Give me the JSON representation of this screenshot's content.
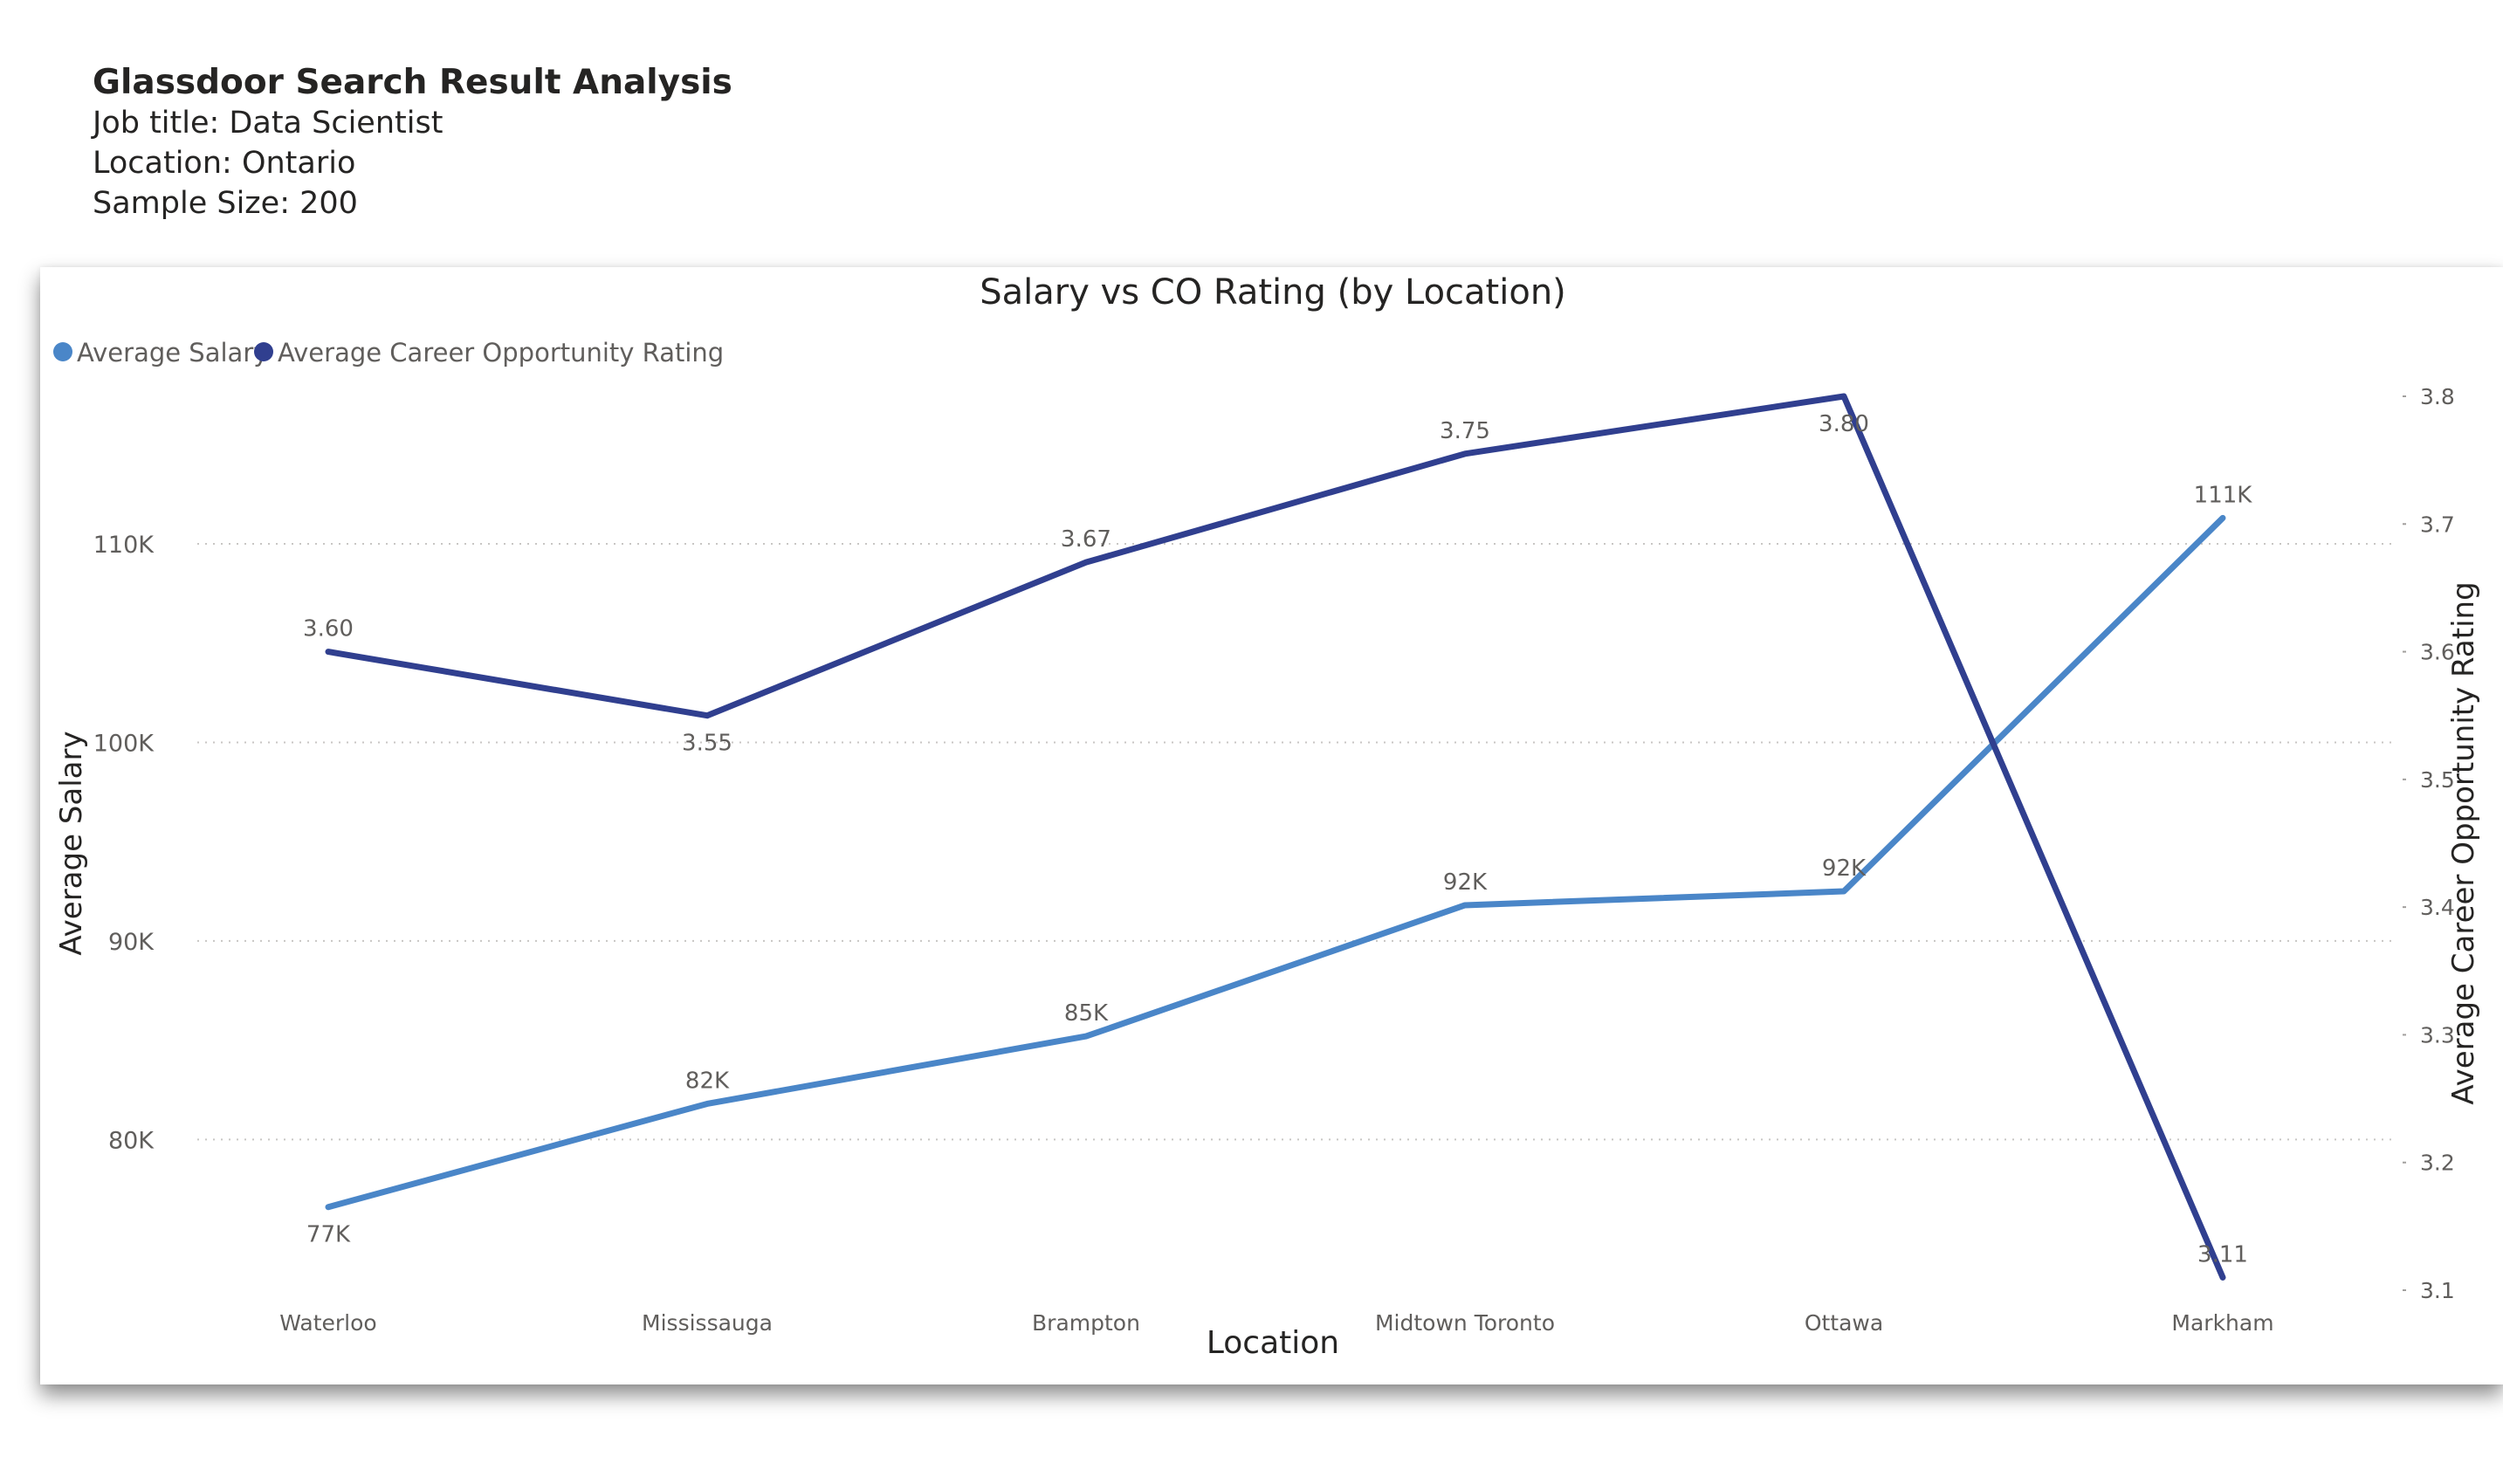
{
  "header": {
    "title": "Glassdoor Search Result Analysis",
    "job_title": "Job title:  Data Scientist",
    "location": "Location: Ontario",
    "sample_size": "Sample Size: 200"
  },
  "chart_data": {
    "type": "line",
    "title": "Salary vs CO Rating (by Location)",
    "xlabel": "Location",
    "ylabel": "Average Salary",
    "y2label": "Average Career Opportunity Rating",
    "categories": [
      "Waterloo",
      "Mississauga",
      "Brampton",
      "Midtown Toronto",
      "Ottawa",
      "Markham"
    ],
    "ylim": [
      72500,
      118000
    ],
    "y2lim": [
      3.1,
      3.8
    ],
    "yticks": [
      80000,
      90000,
      100000,
      110000
    ],
    "ytick_labels": [
      "80K",
      "90K",
      "100K",
      "110K"
    ],
    "y2ticks": [
      3.1,
      3.2,
      3.3,
      3.4,
      3.5,
      3.6,
      3.7,
      3.8
    ],
    "y2tick_labels": [
      "3.1",
      "3.2",
      "3.3",
      "3.4",
      "3.5",
      "3.6",
      "3.7",
      "3.8"
    ],
    "grid": true,
    "legend_position": "top-left",
    "series": [
      {
        "name": "Average Salary",
        "axis": "left",
        "color": "#4a86c8",
        "values": [
          76600,
          81800,
          85200,
          91800,
          92500,
          111300
        ],
        "labels": [
          "77K",
          "82K",
          "85K",
          "92K",
          "92K",
          "111K"
        ],
        "label_pos": [
          "below",
          "above",
          "above",
          "above",
          "above",
          "above"
        ]
      },
      {
        "name": "Average Career Opportunity Rating",
        "axis": "right",
        "color": "#303f8f",
        "values": [
          3.6,
          3.55,
          3.67,
          3.755,
          3.8,
          3.11
        ],
        "labels": [
          "3.60",
          "3.55",
          "3.67",
          "3.75",
          "3.80",
          "3.11"
        ],
        "label_pos": [
          "above",
          "below",
          "above",
          "above",
          "below",
          "above"
        ]
      }
    ]
  }
}
